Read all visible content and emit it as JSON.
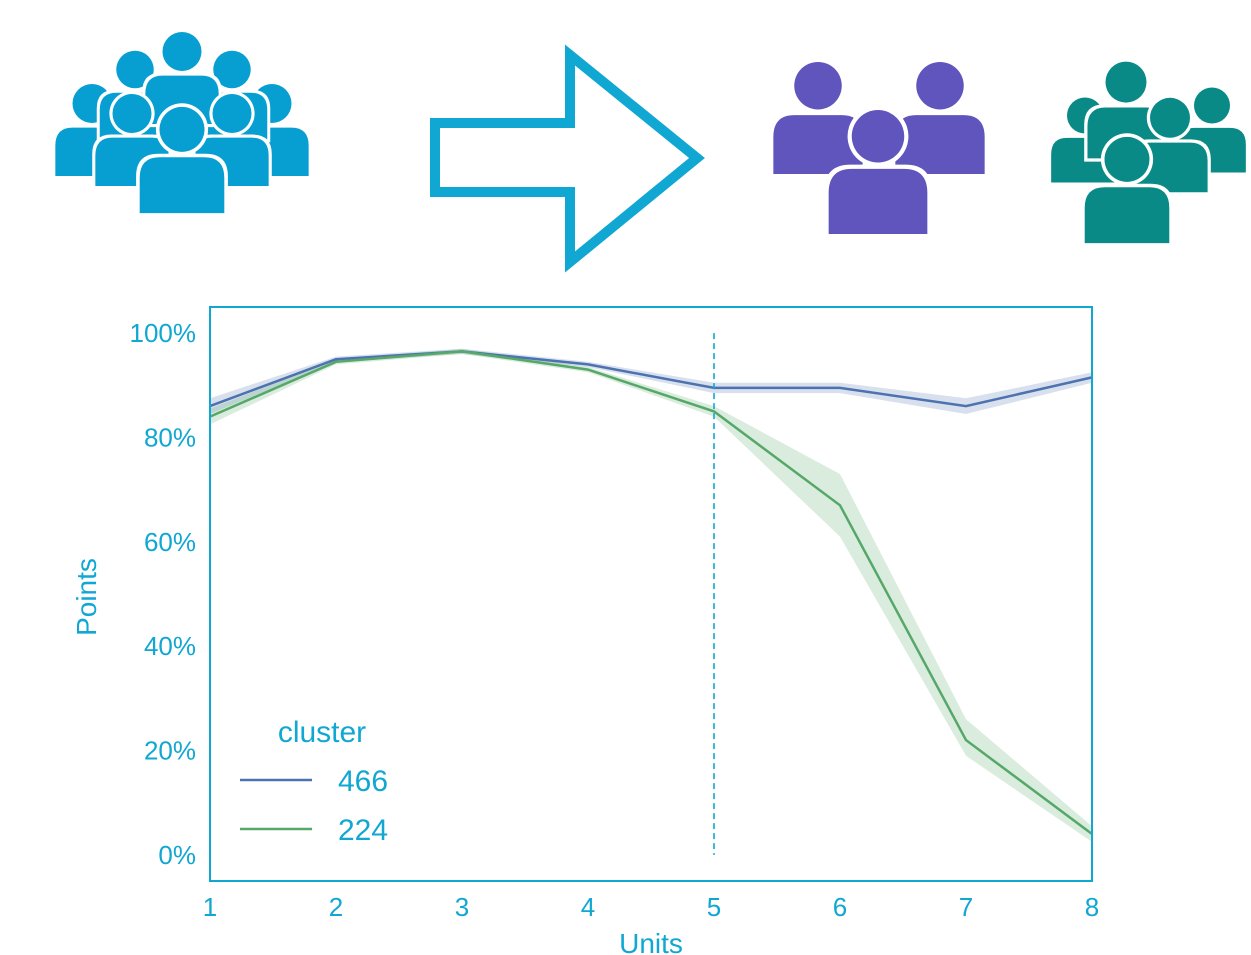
{
  "colors": {
    "accent": "#11a7d3",
    "group_all": "#079fd1",
    "group_a": "#5f55bd",
    "group_b": "#0a8a87",
    "series_466": "#4c72b0",
    "series_224": "#55a868"
  },
  "icons": {
    "source_group": "people-group-icon",
    "arrow": "arrow-right-outline-icon",
    "cluster_a_group": "people-group-icon",
    "cluster_b_group": "people-group-icon"
  },
  "chart_data": {
    "type": "line",
    "title": "",
    "xlabel": "Units",
    "ylabel": "Points",
    "x": [
      1,
      2,
      3,
      4,
      5,
      6,
      7,
      8
    ],
    "x_tick_labels": [
      "1",
      "2",
      "3",
      "4",
      "5",
      "6",
      "7",
      "8"
    ],
    "y_tick_labels": [
      "0%",
      "20%",
      "40%",
      "60%",
      "80%",
      "100%"
    ],
    "y_tick_values": [
      0,
      20,
      40,
      60,
      80,
      100
    ],
    "xlim": [
      1,
      8
    ],
    "ylim": [
      -5,
      105
    ],
    "vline_x": 5,
    "grid": false,
    "legend": {
      "title": "cluster",
      "placement": "bottom-left"
    },
    "series": [
      {
        "name": "466",
        "values": [
          86,
          95,
          96.5,
          94,
          89.5,
          89.5,
          86,
          91.5
        ],
        "ci_low": [
          84.5,
          94.5,
          96,
          93.5,
          88.5,
          88.5,
          84.5,
          90.5
        ],
        "ci_high": [
          87.5,
          95.5,
          97,
          94.5,
          90.5,
          90.5,
          87.5,
          92.5
        ]
      },
      {
        "name": "224",
        "values": [
          84,
          94.5,
          96.5,
          93,
          85,
          67,
          22,
          4
        ],
        "ci_low": [
          82.5,
          94,
          96,
          92.5,
          84,
          61,
          19,
          2.5
        ],
        "ci_high": [
          85.5,
          95,
          97,
          93.5,
          86,
          73,
          26,
          5.5
        ]
      }
    ]
  }
}
